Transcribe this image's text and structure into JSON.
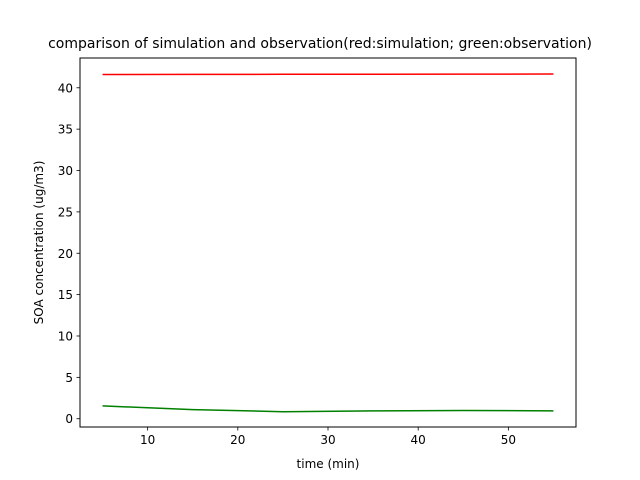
{
  "chart_data": {
    "type": "line",
    "title": "comparison of simulation and observation(red:simulation; green:observation)",
    "xlabel": "time (min)",
    "ylabel": "SOA concentration (ug/m3)",
    "xlim": [
      2.5,
      57.5
    ],
    "ylim": [
      -1,
      43.6
    ],
    "xticks": [
      10,
      20,
      30,
      40,
      50
    ],
    "yticks": [
      0,
      5,
      10,
      15,
      20,
      25,
      30,
      35,
      40
    ],
    "grid": false,
    "x": [
      5,
      15,
      25,
      35,
      45,
      55
    ],
    "series": [
      {
        "color": "#ff0000",
        "values": [
          41.6,
          41.62,
          41.63,
          41.64,
          41.65,
          41.66
        ]
      },
      {
        "color": "#008000",
        "values": [
          1.55,
          1.1,
          0.85,
          0.95,
          1.0,
          0.95
        ]
      }
    ]
  }
}
